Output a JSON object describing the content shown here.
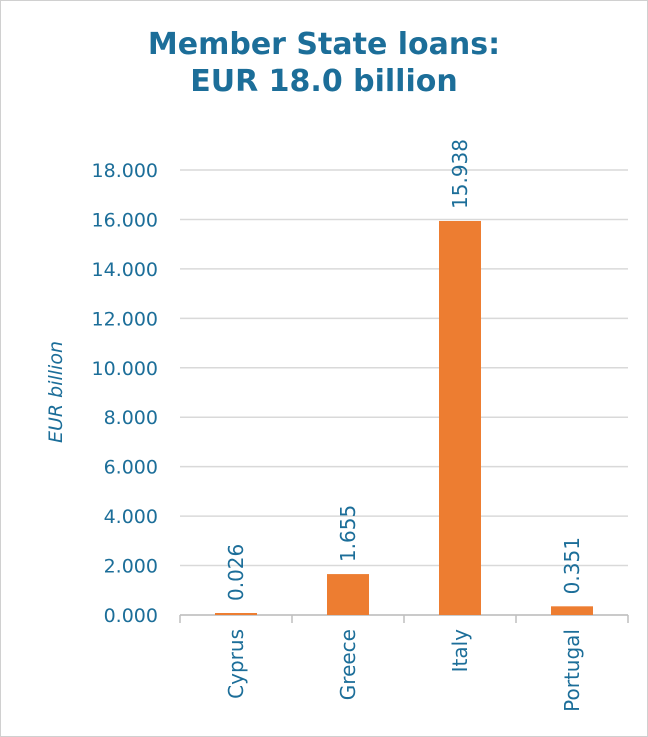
{
  "chart_data": {
    "type": "bar",
    "title_line1": "Member State loans:",
    "title_line2": "EUR 18.0 billion",
    "ylabel": "EUR billion",
    "xlabel": "",
    "categories": [
      "Cyprus",
      "Greece",
      "Italy",
      "Portugal"
    ],
    "values": [
      0.026,
      1.655,
      15.938,
      0.351
    ],
    "value_labels": [
      "0.026",
      "1.655",
      "15.938",
      "0.351"
    ],
    "ylim": [
      0,
      18
    ],
    "yticks": [
      0,
      2,
      4,
      6,
      8,
      10,
      12,
      14,
      16,
      18
    ],
    "ytick_labels": [
      "0.000",
      "2.000",
      "4.000",
      "6.000",
      "8.000",
      "10.000",
      "12.000",
      "14.000",
      "16.000",
      "18.000"
    ],
    "grid": true,
    "legend": "none",
    "colors": {
      "bar": "#ed7d31",
      "text": "#1c6e99",
      "grid": "#d9d9d9"
    }
  }
}
